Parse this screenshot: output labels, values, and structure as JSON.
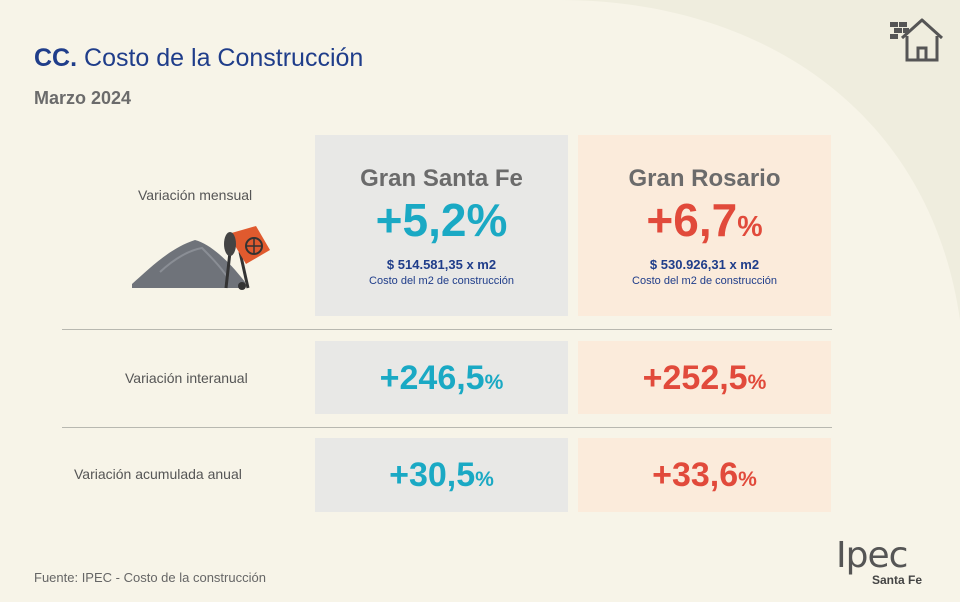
{
  "header": {
    "code": "CC.",
    "title": "Costo de la Construcción",
    "period": "Marzo 2024"
  },
  "regions": {
    "santa_fe": "Gran Santa Fe",
    "rosario": "Gran Rosario"
  },
  "rows": {
    "mensual": {
      "label": "Variación mensual",
      "santa_fe": {
        "value": "+5,2",
        "unit": "%",
        "price": "$ 514.581,35 x m2",
        "price_label": "Costo del m2 de construcción"
      },
      "rosario": {
        "value": "+6,7",
        "unit": "%",
        "price": "$  530.926,31 x m2",
        "price_label": "Costo del m2 de construcción"
      }
    },
    "interanual": {
      "label": "Variación interanual",
      "santa_fe": {
        "value": "+246,5",
        "unit": "%"
      },
      "rosario": {
        "value": "+252,5",
        "unit": "%"
      }
    },
    "acumulada": {
      "label": "Variación acumulada anual",
      "santa_fe": {
        "value": "+30,5",
        "unit": "%"
      },
      "rosario": {
        "value": "+33,6",
        "unit": "%"
      }
    }
  },
  "footer": {
    "source": "Fuente: IPEC - Costo de la construcción",
    "logo_main": "Ipec",
    "logo_sub": "Santa Fe"
  },
  "colors": {
    "santa_fe_accent": "#1aa9c4",
    "rosario_accent": "#e14a3b",
    "title_blue": "#1f3d8a"
  },
  "icons": [
    "house-icon",
    "cement-mixer-illustration"
  ]
}
